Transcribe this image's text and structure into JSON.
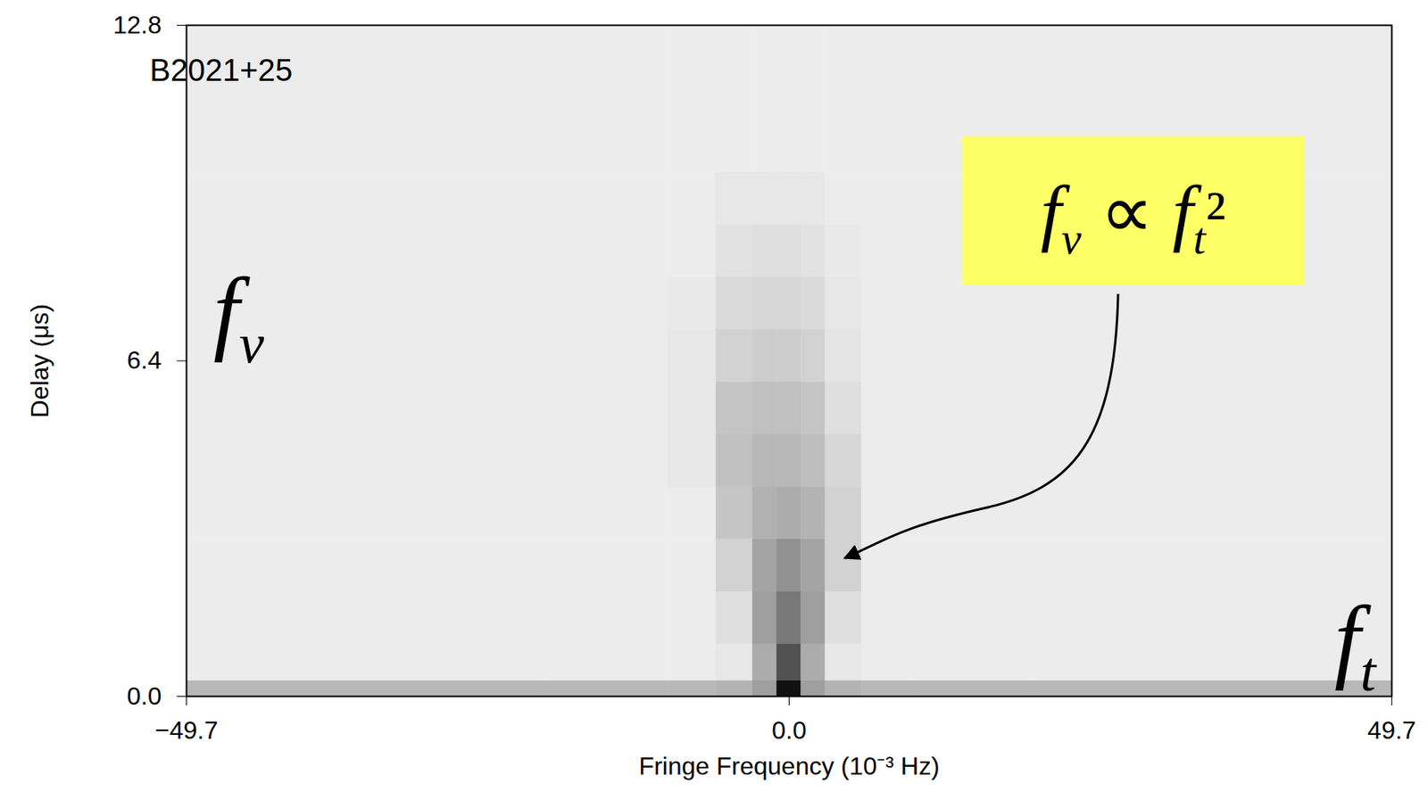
{
  "chart_data": {
    "type": "heatmap",
    "title": "B2021+25",
    "x_label": "Fringe Frequency (10⁻³ Hz)",
    "y_label": "Delay (μs)",
    "xlim": [
      -49.7,
      49.7
    ],
    "xticks": [
      {
        "value": -49.7,
        "label": "−49.7"
      },
      {
        "value": 0,
        "label": "0.0"
      },
      49.7
    ],
    "ylim": [
      0,
      12.8
    ],
    "yticks": [
      {
        "value": 0,
        "label": "0.0"
      },
      6.4,
      12.8
    ],
    "x_bins": [
      -49.7,
      -20,
      -10,
      -6,
      -3,
      -1,
      1,
      3,
      6,
      10,
      20,
      49.7
    ],
    "y_bins": [
      0,
      0.3,
      1,
      2,
      3,
      4,
      5,
      6,
      7,
      8,
      9,
      10,
      12.8
    ],
    "cells": [
      [
        0.3,
        0.3,
        0.3,
        0.32,
        0.4,
        0.95,
        0.4,
        0.32,
        0.3,
        0.3,
        0.3
      ],
      [
        0.1,
        0.1,
        0.1,
        0.12,
        0.35,
        0.7,
        0.35,
        0.12,
        0.1,
        0.1,
        0.1
      ],
      [
        0.1,
        0.1,
        0.1,
        0.15,
        0.4,
        0.55,
        0.4,
        0.15,
        0.1,
        0.1,
        0.1
      ],
      [
        0.1,
        0.1,
        0.1,
        0.2,
        0.38,
        0.45,
        0.38,
        0.2,
        0.1,
        0.1,
        0.1
      ],
      [
        0.1,
        0.1,
        0.1,
        0.25,
        0.33,
        0.35,
        0.32,
        0.2,
        0.1,
        0.1,
        0.1
      ],
      [
        0.1,
        0.1,
        0.12,
        0.27,
        0.3,
        0.3,
        0.28,
        0.18,
        0.1,
        0.1,
        0.1
      ],
      [
        0.1,
        0.1,
        0.12,
        0.25,
        0.27,
        0.27,
        0.25,
        0.15,
        0.1,
        0.1,
        0.1
      ],
      [
        0.1,
        0.1,
        0.12,
        0.2,
        0.22,
        0.22,
        0.2,
        0.13,
        0.1,
        0.1,
        0.1
      ],
      [
        0.1,
        0.1,
        0.11,
        0.17,
        0.18,
        0.18,
        0.17,
        0.12,
        0.1,
        0.1,
        0.1
      ],
      [
        0.1,
        0.1,
        0.1,
        0.14,
        0.15,
        0.15,
        0.14,
        0.11,
        0.1,
        0.1,
        0.1
      ],
      [
        0.1,
        0.1,
        0.1,
        0.12,
        0.12,
        0.12,
        0.12,
        0.1,
        0.1,
        0.1,
        0.1
      ],
      [
        0.1,
        0.1,
        0.1,
        0.1,
        0.1,
        0.1,
        0.1,
        0.1,
        0.1,
        0.1,
        0.1
      ]
    ],
    "annotations": [
      {
        "text": "fν"
      },
      {
        "text": "ft"
      },
      {
        "text": "fν ∝ ft²",
        "x": 4.1,
        "y": 2.6,
        "color": "#ffff66"
      }
    ]
  }
}
